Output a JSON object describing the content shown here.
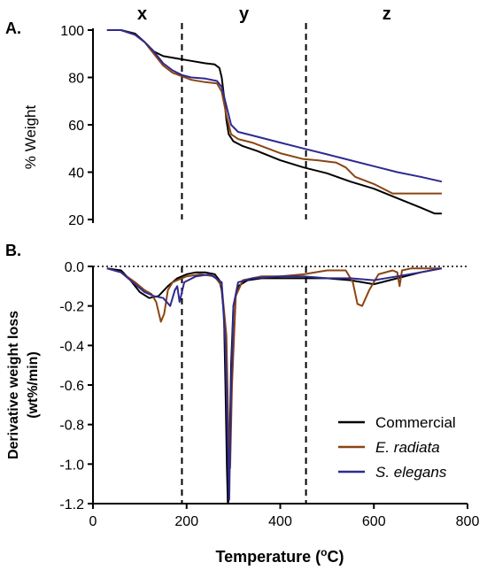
{
  "chart_data": [
    {
      "panel_label": "A.",
      "type": "line",
      "xlabel": "",
      "ylabel": "% Weight",
      "xlim": [
        0,
        800
      ],
      "ylim": [
        20,
        100
      ],
      "yticks": [
        "20",
        "40",
        "60",
        "80",
        "100"
      ],
      "region_labels": [
        "x",
        "y",
        "z"
      ],
      "region_boundaries": [
        190,
        455
      ],
      "series": [
        {
          "name": "Commercial",
          "color": "#000000",
          "x": [
            30,
            60,
            90,
            110,
            130,
            150,
            180,
            210,
            240,
            260,
            270,
            275,
            280,
            285,
            290,
            300,
            320,
            350,
            400,
            450,
            500,
            550,
            600,
            650,
            700,
            730,
            745
          ],
          "y": [
            100,
            100,
            98.5,
            95,
            91,
            89,
            88,
            87,
            86,
            85.5,
            84,
            80,
            72,
            62,
            56,
            53,
            51,
            49,
            45,
            42,
            39.5,
            36,
            33,
            29,
            25,
            22.5,
            22.5
          ]
        },
        {
          "name": "E. radiata",
          "color": "#8B4513",
          "x": [
            30,
            60,
            90,
            110,
            130,
            150,
            170,
            190,
            210,
            240,
            265,
            275,
            285,
            295,
            310,
            340,
            400,
            450,
            480,
            520,
            540,
            560,
            600,
            640,
            700,
            745
          ],
          "y": [
            100,
            100,
            98,
            95,
            90,
            85,
            82,
            80.5,
            79,
            78,
            77.5,
            74,
            64,
            56,
            54,
            52.5,
            48,
            45.5,
            45,
            44,
            42,
            38,
            35,
            31,
            31,
            31
          ]
        },
        {
          "name": "S. elegans",
          "color": "#2E2A8F",
          "x": [
            30,
            60,
            90,
            110,
            130,
            150,
            170,
            190,
            210,
            240,
            265,
            275,
            285,
            295,
            310,
            340,
            400,
            450,
            500,
            550,
            600,
            650,
            700,
            745
          ],
          "y": [
            100,
            100,
            98,
            95,
            91,
            86,
            83,
            81,
            80,
            79.5,
            78.5,
            76,
            68,
            60,
            57,
            55.5,
            52.5,
            50,
            47.5,
            45,
            42.5,
            40,
            38,
            36
          ]
        }
      ]
    },
    {
      "panel_label": "B.",
      "type": "line",
      "xlabel": "Temperature (°C)",
      "ylabel": "Derivative weight loss (wt%/min)",
      "ylabel_lines": [
        "Derivative weight loss",
        "(wt%/min)"
      ],
      "xlabel_parts": [
        "Temperature (",
        "o",
        "C)"
      ],
      "xlim": [
        0,
        800
      ],
      "ylim": [
        -1.2,
        0.0
      ],
      "xticks": [
        "0",
        "200",
        "400",
        "600",
        "800"
      ],
      "yticks": [
        "0.0",
        "-0.2",
        "-0.4",
        "-0.6",
        "-0.8",
        "-1.0",
        "-1.2"
      ],
      "zero_line": "dotted",
      "region_boundaries": [
        190,
        455
      ],
      "legend_position": "bottom-right",
      "series": [
        {
          "name": "Commercial",
          "color": "#000000",
          "x": [
            30,
            60,
            80,
            100,
            120,
            140,
            160,
            180,
            200,
            220,
            240,
            260,
            270,
            275,
            280,
            283,
            286,
            288,
            290,
            292,
            295,
            300,
            310,
            330,
            360,
            400,
            450,
            500,
            550,
            600,
            650,
            700,
            745
          ],
          "y": [
            -0.01,
            -0.02,
            -0.07,
            -0.13,
            -0.16,
            -0.15,
            -0.1,
            -0.06,
            -0.04,
            -0.03,
            -0.03,
            -0.04,
            -0.07,
            -0.12,
            -0.25,
            -0.6,
            -1.0,
            -1.2,
            -1.18,
            -0.9,
            -0.5,
            -0.2,
            -0.1,
            -0.07,
            -0.06,
            -0.06,
            -0.06,
            -0.06,
            -0.07,
            -0.09,
            -0.06,
            -0.03,
            -0.01
          ]
        },
        {
          "name": "E. radiata",
          "color": "#8B4513",
          "x": [
            30,
            60,
            90,
            110,
            125,
            135,
            145,
            152,
            160,
            170,
            180,
            200,
            230,
            260,
            275,
            285,
            290,
            293,
            297,
            305,
            320,
            360,
            400,
            450,
            500,
            540,
            555,
            565,
            575,
            590,
            610,
            640,
            650,
            655,
            660,
            680,
            745
          ],
          "y": [
            -0.01,
            -0.03,
            -0.08,
            -0.12,
            -0.14,
            -0.18,
            -0.28,
            -0.24,
            -0.12,
            -0.08,
            -0.07,
            -0.05,
            -0.04,
            -0.05,
            -0.1,
            -0.35,
            -0.9,
            -1.02,
            -0.6,
            -0.15,
            -0.07,
            -0.05,
            -0.05,
            -0.04,
            -0.02,
            -0.02,
            -0.08,
            -0.19,
            -0.2,
            -0.12,
            -0.04,
            -0.02,
            -0.03,
            -0.1,
            -0.02,
            -0.01,
            -0.01
          ]
        },
        {
          "name": "S. elegans",
          "color": "#2E2A8F",
          "x": [
            30,
            60,
            90,
            110,
            130,
            150,
            165,
            175,
            180,
            185,
            195,
            220,
            250,
            275,
            283,
            288,
            291,
            294,
            300,
            310,
            340,
            400,
            450,
            500,
            550,
            600,
            650,
            700,
            745
          ],
          "y": [
            -0.01,
            -0.03,
            -0.09,
            -0.13,
            -0.15,
            -0.16,
            -0.2,
            -0.12,
            -0.1,
            -0.18,
            -0.08,
            -0.05,
            -0.04,
            -0.08,
            -0.4,
            -0.9,
            -1.18,
            -0.7,
            -0.2,
            -0.08,
            -0.06,
            -0.05,
            -0.05,
            -0.06,
            -0.06,
            -0.07,
            -0.05,
            -0.03,
            -0.01
          ]
        }
      ]
    }
  ]
}
